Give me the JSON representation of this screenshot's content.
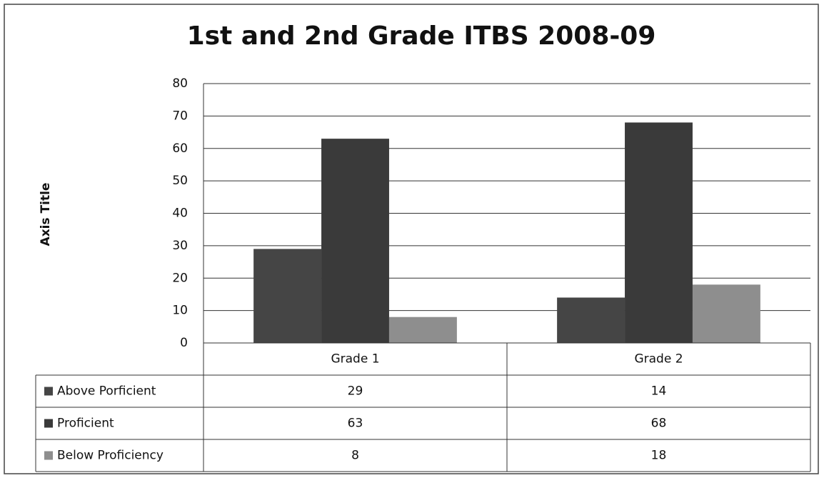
{
  "chart_data": {
    "type": "bar",
    "title": "1st and 2nd Grade ITBS 2008-09",
    "y_label": "Axis Title",
    "categories": [
      "Grade 1",
      "Grade 2"
    ],
    "series": [
      {
        "name": "Above Porficient",
        "color": "#454545",
        "values": [
          29,
          14
        ]
      },
      {
        "name": "Proficient",
        "color": "#3a3a3a",
        "values": [
          63,
          68
        ]
      },
      {
        "name": "Below Proficiency",
        "color": "#8e8e8e",
        "values": [
          8,
          18
        ]
      }
    ],
    "ylim": [
      0,
      80
    ],
    "yticks": [
      0,
      10,
      20,
      30,
      40,
      50,
      60,
      70,
      80
    ],
    "grid": true,
    "data_table": true
  }
}
